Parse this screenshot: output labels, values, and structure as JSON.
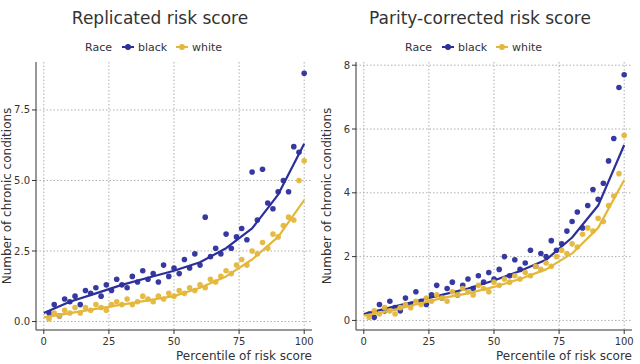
{
  "chart_data": [
    {
      "type": "scatter",
      "title": "Replicated risk score",
      "legend_title": "Race",
      "x_label": "Percentile of risk score",
      "y_label": "Number of chronic conditions",
      "xlim": [
        -3,
        103
      ],
      "xticks": [
        0,
        25,
        50,
        75,
        100
      ],
      "ylim": [
        -0.3,
        9.2
      ],
      "yticks": [
        {
          "value": 0,
          "label": "0.0"
        },
        2.5,
        {
          "value": 5,
          "label": "5.0"
        },
        7.5
      ],
      "grid": true,
      "legend": "top",
      "x": [
        2,
        4,
        6,
        8,
        10,
        12,
        14,
        16,
        18,
        20,
        22,
        24,
        26,
        28,
        30,
        32,
        34,
        36,
        38,
        40,
        42,
        44,
        46,
        48,
        50,
        52,
        54,
        56,
        58,
        60,
        62,
        64,
        66,
        68,
        70,
        72,
        74,
        76,
        78,
        80,
        82,
        84,
        86,
        88,
        90,
        92,
        94,
        96,
        98,
        100
      ],
      "series": [
        {
          "name": "black",
          "color": "#2b2e9b",
          "marker": "circle",
          "values": [
            0.3,
            0.6,
            0.2,
            0.8,
            0.7,
            0.9,
            0.6,
            1.1,
            1.0,
            1.2,
            0.9,
            1.3,
            1.1,
            1.5,
            1.3,
            1.2,
            1.6,
            1.4,
            1.8,
            1.5,
            1.7,
            1.4,
            2.0,
            1.6,
            1.9,
            1.7,
            2.2,
            1.9,
            2.4,
            2.0,
            3.7,
            2.3,
            2.6,
            2.4,
            3.1,
            2.6,
            3.0,
            3.3,
            2.9,
            5.3,
            3.6,
            5.4,
            4.2,
            4.0,
            4.6,
            5.0,
            4.6,
            6.2,
            6.0,
            8.8
          ],
          "fit": {
            "x": [
              0,
              10,
              20,
              30,
              40,
              50,
              60,
              70,
              80,
              90,
              100
            ],
            "values": [
              0.3,
              0.7,
              1.0,
              1.3,
              1.55,
              1.8,
              2.1,
              2.6,
              3.3,
              4.5,
              6.3
            ]
          }
        },
        {
          "name": "white",
          "color": "#e4b73a",
          "marker": "circle",
          "values": [
            0.1,
            0.3,
            0.2,
            0.4,
            0.3,
            0.5,
            0.3,
            0.5,
            0.4,
            0.6,
            0.5,
            0.4,
            0.6,
            0.7,
            0.6,
            0.8,
            0.6,
            0.7,
            0.9,
            0.8,
            0.7,
            0.9,
            0.8,
            1.0,
            0.9,
            1.1,
            1.0,
            1.2,
            1.1,
            1.3,
            1.2,
            1.5,
            1.4,
            1.6,
            1.8,
            1.7,
            2.0,
            2.2,
            2.0,
            2.5,
            2.4,
            2.8,
            2.6,
            3.1,
            3.0,
            3.4,
            3.7,
            3.6,
            5.0,
            5.7
          ],
          "fit": {
            "x": [
              0,
              10,
              20,
              30,
              40,
              50,
              60,
              70,
              80,
              90,
              100
            ],
            "values": [
              0.15,
              0.3,
              0.45,
              0.6,
              0.75,
              0.9,
              1.2,
              1.6,
              2.2,
              3.0,
              4.3
            ]
          }
        }
      ]
    },
    {
      "type": "scatter",
      "title": "Parity-corrected risk score",
      "legend_title": "Race",
      "x_label": "Percentile of risk score",
      "y_label": "Number of chronic conditions",
      "xlim": [
        -3,
        103
      ],
      "xticks": [
        0,
        25,
        50,
        75,
        100
      ],
      "ylim": [
        -0.3,
        8.1
      ],
      "yticks": [
        0,
        2,
        4,
        6,
        8
      ],
      "grid": true,
      "legend": "top",
      "x": [
        2,
        4,
        6,
        8,
        10,
        12,
        14,
        16,
        18,
        20,
        22,
        24,
        26,
        28,
        30,
        32,
        34,
        36,
        38,
        40,
        42,
        44,
        46,
        48,
        50,
        52,
        54,
        56,
        58,
        60,
        62,
        64,
        66,
        68,
        70,
        72,
        74,
        76,
        78,
        80,
        82,
        84,
        86,
        88,
        90,
        92,
        94,
        96,
        98,
        100
      ],
      "series": [
        {
          "name": "black",
          "color": "#2b2e9b",
          "marker": "circle",
          "values": [
            0.2,
            0.1,
            0.5,
            0.3,
            0.6,
            0.4,
            0.3,
            0.7,
            0.5,
            0.9,
            0.6,
            0.5,
            0.8,
            1.1,
            0.7,
            1.0,
            1.2,
            0.8,
            1.1,
            1.3,
            1.0,
            1.4,
            1.2,
            1.5,
            1.3,
            1.6,
            2.0,
            1.4,
            1.9,
            1.6,
            1.8,
            2.2,
            1.7,
            2.1,
            2.0,
            2.5,
            2.2,
            2.4,
            2.8,
            3.1,
            3.4,
            2.9,
            3.6,
            4.1,
            3.8,
            4.3,
            5.0,
            5.7,
            7.3,
            7.7
          ],
          "fit": {
            "x": [
              0,
              10,
              20,
              30,
              40,
              50,
              60,
              70,
              80,
              90,
              100
            ],
            "values": [
              0.2,
              0.4,
              0.6,
              0.8,
              1.0,
              1.25,
              1.55,
              1.9,
              2.6,
              3.6,
              5.5
            ]
          }
        },
        {
          "name": "white",
          "color": "#e4b73a",
          "marker": "circle",
          "values": [
            0.1,
            0.3,
            0.2,
            0.4,
            0.3,
            0.2,
            0.4,
            0.5,
            0.4,
            0.6,
            0.5,
            0.7,
            0.6,
            0.8,
            0.7,
            0.6,
            0.9,
            0.8,
            1.0,
            0.9,
            0.8,
            1.1,
            1.0,
            0.9,
            1.2,
            1.1,
            1.3,
            1.2,
            1.4,
            1.3,
            1.5,
            1.4,
            1.7,
            1.6,
            1.8,
            1.7,
            2.0,
            2.2,
            2.1,
            2.4,
            2.3,
            2.7,
            2.9,
            2.8,
            3.2,
            3.1,
            3.6,
            3.9,
            4.6,
            5.8
          ],
          "fit": {
            "x": [
              0,
              10,
              20,
              30,
              40,
              50,
              60,
              70,
              80,
              90,
              100
            ],
            "values": [
              0.15,
              0.3,
              0.5,
              0.7,
              0.85,
              1.05,
              1.3,
              1.6,
              2.1,
              2.9,
              4.4
            ]
          }
        }
      ]
    }
  ]
}
